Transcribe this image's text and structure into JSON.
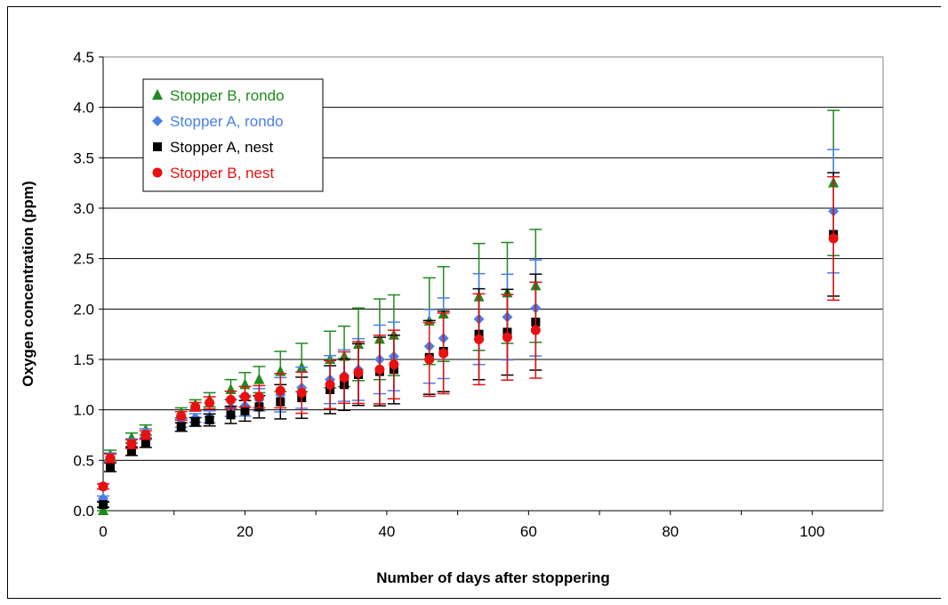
{
  "chart_data": {
    "type": "scatter",
    "title": "",
    "xlabel": "Number of days after stoppering",
    "ylabel": "Oxygen concentration (ppm)",
    "xlim": [
      0,
      110
    ],
    "ylim": [
      0,
      4.5
    ],
    "x_ticks": [
      "0",
      "20",
      "40",
      "60",
      "80",
      "100"
    ],
    "y_ticks": [
      "0.0",
      "0.5",
      "1.0",
      "1.5",
      "2.0",
      "2.5",
      "3.0",
      "3.5",
      "4.0",
      "4.5"
    ],
    "grid": "horizontal major gridlines",
    "legend_position": "top-left, inside plot",
    "series": [
      {
        "name": "Stopper B, rondo",
        "color": "#1e8a1e",
        "marker": "triangle",
        "x": [
          0,
          1,
          4,
          6,
          11,
          13,
          15,
          18,
          20,
          22,
          25,
          28,
          32,
          34,
          36,
          39,
          41,
          46,
          48,
          53,
          57,
          61,
          103
        ],
        "y": [
          0.0,
          0.55,
          0.72,
          0.8,
          0.97,
          1.05,
          1.1,
          1.2,
          1.25,
          1.3,
          1.38,
          1.42,
          1.5,
          1.53,
          1.65,
          1.7,
          1.74,
          1.88,
          1.95,
          2.12,
          2.16,
          2.23,
          3.25
        ],
        "err": [
          0.03,
          0.05,
          0.05,
          0.05,
          0.05,
          0.05,
          0.07,
          0.1,
          0.12,
          0.13,
          0.2,
          0.24,
          0.28,
          0.3,
          0.36,
          0.4,
          0.4,
          0.43,
          0.47,
          0.53,
          0.5,
          0.56,
          0.72
        ]
      },
      {
        "name": "Stopper A, rondo",
        "color": "#4a7fe8",
        "marker": "diamond",
        "x": [
          0,
          1,
          4,
          6,
          11,
          13,
          15,
          18,
          20,
          22,
          25,
          28,
          32,
          34,
          36,
          39,
          41,
          46,
          48,
          53,
          57,
          61,
          103
        ],
        "y": [
          0.12,
          0.53,
          0.67,
          0.77,
          0.87,
          0.92,
          0.93,
          1.02,
          1.04,
          1.1,
          1.15,
          1.22,
          1.3,
          1.34,
          1.4,
          1.5,
          1.53,
          1.63,
          1.71,
          1.9,
          1.92,
          2.01,
          2.97
        ]
      },
      {
        "name": "Stopper A, nest",
        "color": "#000000",
        "marker": "square",
        "x": [
          0,
          1,
          4,
          6,
          11,
          13,
          15,
          18,
          20,
          22,
          25,
          28,
          32,
          34,
          36,
          39,
          41,
          46,
          48,
          53,
          57,
          61,
          103
        ],
        "y": [
          0.06,
          0.43,
          0.59,
          0.67,
          0.83,
          0.88,
          0.9,
          0.95,
          0.99,
          1.03,
          1.08,
          1.12,
          1.2,
          1.25,
          1.35,
          1.38,
          1.4,
          1.52,
          1.58,
          1.75,
          1.77,
          1.87,
          2.74
        ]
      },
      {
        "name": "Stopper B, nest",
        "color": "#e81010",
        "marker": "circle",
        "x": [
          0,
          1,
          4,
          6,
          11,
          13,
          15,
          18,
          20,
          22,
          25,
          28,
          32,
          34,
          36,
          39,
          41,
          46,
          48,
          53,
          57,
          61,
          103
        ],
        "y": [
          0.24,
          0.52,
          0.66,
          0.75,
          0.94,
          1.03,
          1.07,
          1.1,
          1.13,
          1.13,
          1.19,
          1.17,
          1.25,
          1.32,
          1.37,
          1.4,
          1.45,
          1.5,
          1.56,
          1.7,
          1.72,
          1.79,
          2.7
        ]
      }
    ]
  }
}
